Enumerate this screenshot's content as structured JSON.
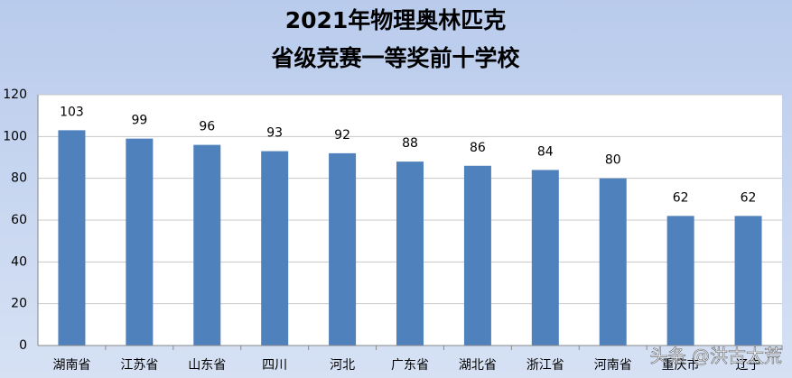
{
  "chart_data": {
    "type": "bar",
    "title": "2021年物理奥林匹克",
    "subtitle": "省级竞赛一等奖前十学校",
    "categories": [
      "湖南省",
      "江苏省",
      "山东省",
      "四川",
      "河北",
      "广东省",
      "湖北省",
      "浙江省",
      "河南省",
      "重庆市",
      "辽宁"
    ],
    "values": [
      103,
      99,
      96,
      93,
      92,
      88,
      86,
      84,
      80,
      62,
      62
    ],
    "color": "#4f81bd",
    "ylim": [
      0,
      120
    ],
    "yticks": [
      0,
      20,
      40,
      60,
      80,
      100,
      120
    ],
    "grid": true,
    "watermark": "头条 @洪古太荒"
  }
}
